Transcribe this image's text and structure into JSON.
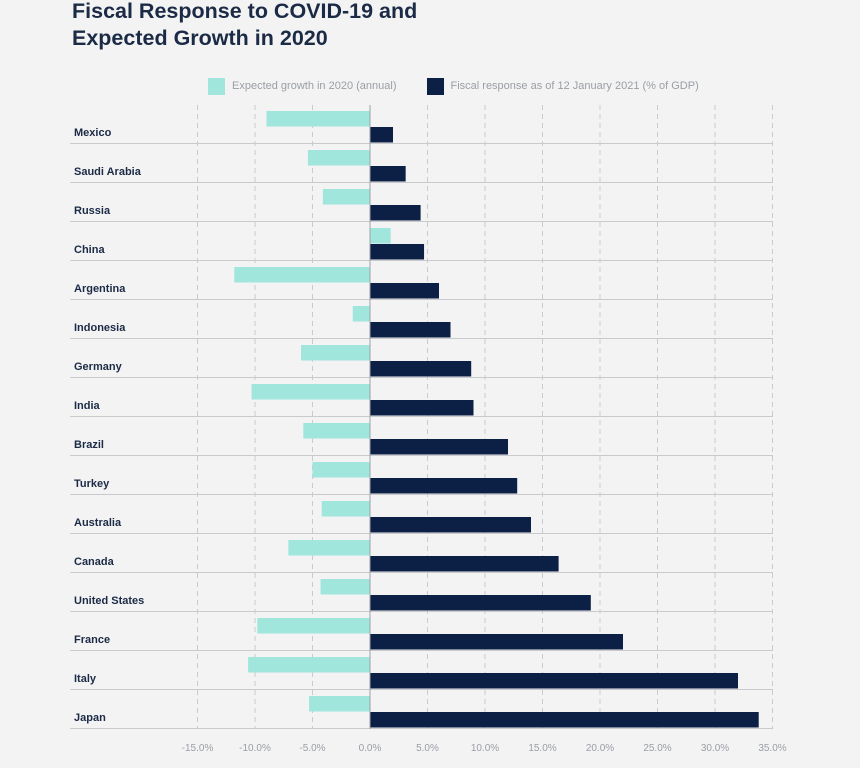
{
  "title_line1": "Fiscal Response to COVID-19 and",
  "title_line2": "Expected Growth in 2020",
  "chart_data": {
    "type": "bar",
    "orientation": "horizontal",
    "categories": [
      "Mexico",
      "Saudi Arabia",
      "Russia",
      "China",
      "Argentina",
      "Indonesia",
      "Germany",
      "India",
      "Brazil",
      "Turkey",
      "Australia",
      "Canada",
      "United States",
      "France",
      "Italy",
      "Japan"
    ],
    "series": [
      {
        "name": "Expected growth in 2020 (annual)",
        "color": "#a0e6dc",
        "values": [
          -9.0,
          -5.4,
          -4.1,
          1.8,
          -11.8,
          -1.5,
          -6.0,
          -10.3,
          -5.8,
          -5.0,
          -4.2,
          -7.1,
          -4.3,
          -9.8,
          -10.6,
          -5.3
        ]
      },
      {
        "name": "Fiscal response as of 12 January 2021 (% of GDP)",
        "color": "#0c1f45",
        "values": [
          2.0,
          3.1,
          4.4,
          4.7,
          6.0,
          7.0,
          8.8,
          9.0,
          12.0,
          12.8,
          14.0,
          16.4,
          19.2,
          22.0,
          32.0,
          33.8
        ]
      }
    ],
    "xlim": [
      -15,
      35
    ],
    "xticks": [
      "-15.0%",
      "-10.0%",
      "-5.0%",
      "0.0%",
      "5.0%",
      "10.0%",
      "15.0%",
      "20.0%",
      "25.0%",
      "30.0%",
      "35.0%"
    ],
    "xtick_values": [
      -15,
      -10,
      -5,
      0,
      5,
      10,
      15,
      20,
      25,
      30,
      35
    ],
    "grid": "vertical dashed",
    "legend_position": "top"
  }
}
